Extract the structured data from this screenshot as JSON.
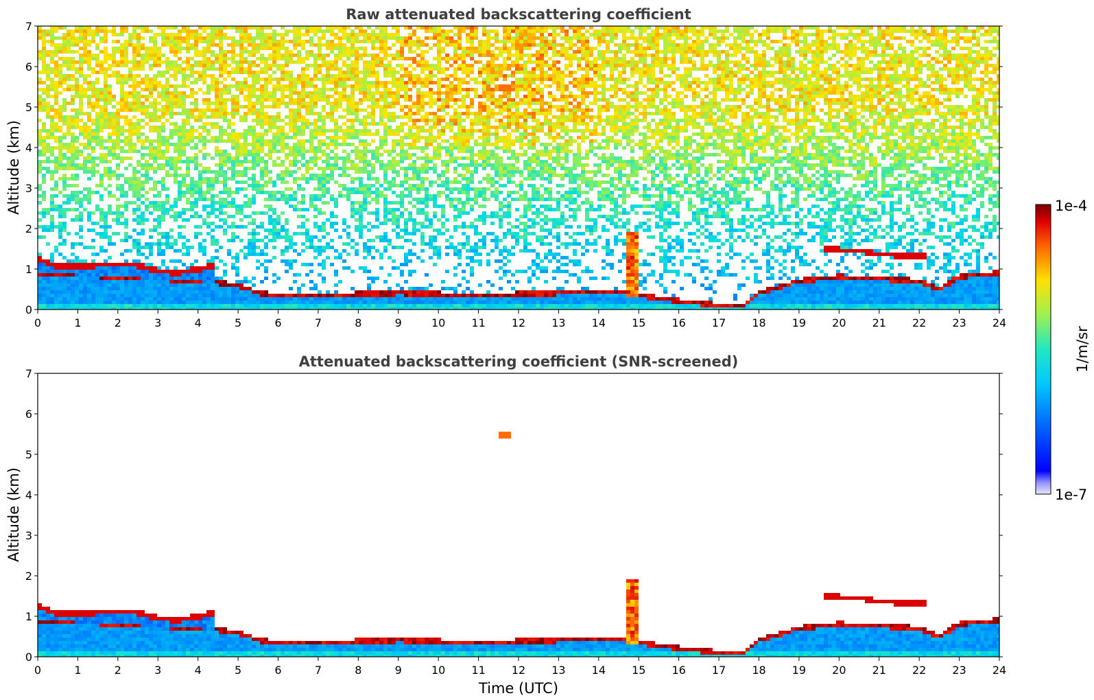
{
  "chart_data": [
    {
      "type": "heatmap",
      "title": "Raw attenuated backscattering coefficient",
      "ylabel": "Altitude (km)",
      "xlabel": "",
      "xlim": [
        0,
        24
      ],
      "ylim": [
        0,
        7
      ],
      "xticks": [
        "0",
        "1",
        "2",
        "3",
        "4",
        "5",
        "6",
        "7",
        "8",
        "9",
        "10",
        "11",
        "12",
        "13",
        "14",
        "15",
        "16",
        "17",
        "18",
        "19",
        "20",
        "21",
        "22",
        "23",
        "24"
      ],
      "yticks": [
        "0",
        "1",
        "2",
        "3",
        "4",
        "5",
        "6",
        "7"
      ],
      "screened": false
    },
    {
      "type": "heatmap",
      "title": "Attenuated backscattering coefficient (SNR-screened)",
      "ylabel": "Altitude (km)",
      "xlabel": "Time (UTC)",
      "xlim": [
        0,
        24
      ],
      "ylim": [
        0,
        7
      ],
      "xticks": [
        "0",
        "1",
        "2",
        "3",
        "4",
        "5",
        "6",
        "7",
        "8",
        "9",
        "10",
        "11",
        "12",
        "13",
        "14",
        "15",
        "16",
        "17",
        "18",
        "19",
        "20",
        "21",
        "22",
        "23",
        "24"
      ],
      "yticks": [
        "0",
        "1",
        "2",
        "3",
        "4",
        "5",
        "6",
        "7"
      ],
      "screened": true
    }
  ],
  "colorbar": {
    "label": "1/m/sr",
    "max_label": "1e-4",
    "min_label": "1e-7",
    "scale": "log",
    "colormap": "jet"
  },
  "features": {
    "cloud_layer": [
      [
        0,
        1.25
      ],
      [
        0.5,
        1.05
      ],
      [
        1,
        1.05
      ],
      [
        1.5,
        1.1
      ],
      [
        2,
        1.12
      ],
      [
        2.5,
        1.1
      ],
      [
        3,
        0.95
      ],
      [
        3.5,
        0.9
      ],
      [
        4,
        1.0
      ],
      [
        4.3,
        1.05
      ]
    ],
    "boundary_layer": [
      [
        0,
        0.9
      ],
      [
        2,
        0.8
      ],
      [
        4,
        0.7
      ],
      [
        5,
        0.6
      ],
      [
        5.5,
        0.4
      ],
      [
        6,
        0.35
      ],
      [
        7,
        0.35
      ],
      [
        9,
        0.4
      ],
      [
        11,
        0.35
      ],
      [
        13,
        0.4
      ],
      [
        14.5,
        0.45
      ],
      [
        15,
        0.35
      ],
      [
        16,
        0.2
      ],
      [
        17,
        0.1
      ],
      [
        17.6,
        0.1
      ],
      [
        18,
        0.4
      ],
      [
        19,
        0.7
      ],
      [
        20,
        0.8
      ],
      [
        22,
        0.7
      ],
      [
        22.5,
        0.5
      ],
      [
        23,
        0.8
      ],
      [
        24,
        0.9
      ]
    ],
    "elevated_layers": [
      [
        19.6,
        1.5
      ],
      [
        20.5,
        1.45
      ],
      [
        21,
        1.35
      ],
      [
        22,
        1.32
      ]
    ],
    "plume": [
      14.8,
      1.9
    ],
    "small_cloud": [
      11.65,
      5.5
    ]
  }
}
